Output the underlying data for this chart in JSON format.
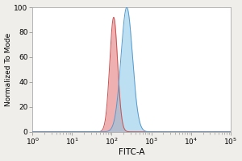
{
  "title": "",
  "xlabel": "FITC-A",
  "ylabel": "Normalized To Mode",
  "xlim_log": [
    0,
    5
  ],
  "ylim": [
    0,
    100
  ],
  "yticks": [
    0,
    20,
    40,
    60,
    80,
    100
  ],
  "red_peak_log": 2.05,
  "red_peak_height": 92,
  "red_sigma_log": 0.1,
  "blue_peak_log": 2.38,
  "blue_peak_height": 100,
  "blue_sigma_log": 0.145,
  "red_fill_color": "#E07070",
  "red_edge_color": "#C85050",
  "blue_fill_color": "#85C8E8",
  "blue_edge_color": "#5599CC",
  "fill_alpha": 0.55,
  "bg_color": "#F0EEEB",
  "plot_bg_color": "#FFFFFF",
  "xlabel_fontsize": 7.5,
  "ylabel_fontsize": 6.5,
  "tick_fontsize": 6.5,
  "figsize": [
    3.0,
    2.0
  ],
  "dpi": 100
}
